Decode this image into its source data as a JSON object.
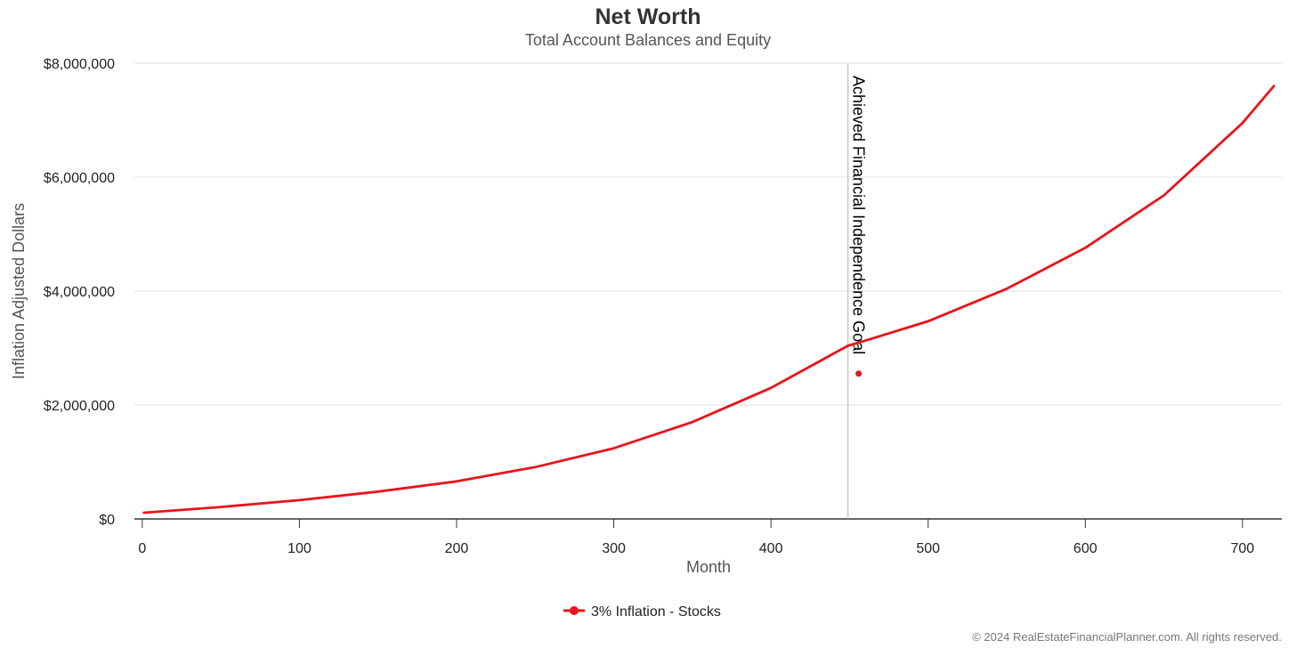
{
  "chart_data": {
    "type": "line",
    "title": "Net Worth",
    "subtitle": "Total Account Balances and Equity",
    "xlabel": "Month",
    "ylabel": "Inflation Adjusted Dollars",
    "xlim": [
      -5,
      725
    ],
    "ylim": [
      0,
      8000000
    ],
    "x_ticks": [
      0,
      100,
      200,
      300,
      400,
      500,
      600,
      700
    ],
    "x_tick_labels": [
      "0",
      "100",
      "200",
      "300",
      "400",
      "500",
      "600",
      "700"
    ],
    "y_ticks": [
      0,
      2000000,
      4000000,
      6000000,
      8000000
    ],
    "y_tick_labels": [
      "$0",
      "$2,000,000",
      "$4,000,000",
      "$6,000,000",
      "$8,000,000"
    ],
    "grid": "horizontal",
    "legend_position": "bottom-center",
    "series": [
      {
        "name": "3% Inflation - Stocks",
        "color": "#e8141c",
        "x": [
          1,
          50,
          100,
          150,
          200,
          250,
          300,
          350,
          400,
          449,
          460,
          500,
          550,
          600,
          650,
          700,
          720
        ],
        "values": [
          110000,
          210000,
          330000,
          480000,
          660000,
          910000,
          1240000,
          1700000,
          2300000,
          3040000,
          3130000,
          3470000,
          4040000,
          4760000,
          5680000,
          6950000,
          7600000
        ]
      }
    ],
    "annotations": [
      {
        "type": "vertical-line",
        "x": 449,
        "label": "Achieved Financial Independence Goal",
        "marker_y": 2550000,
        "color": "#bdbdbd"
      }
    ],
    "credits": "© 2024 RealEstateFinancialPlanner.com. All rights reserved."
  }
}
